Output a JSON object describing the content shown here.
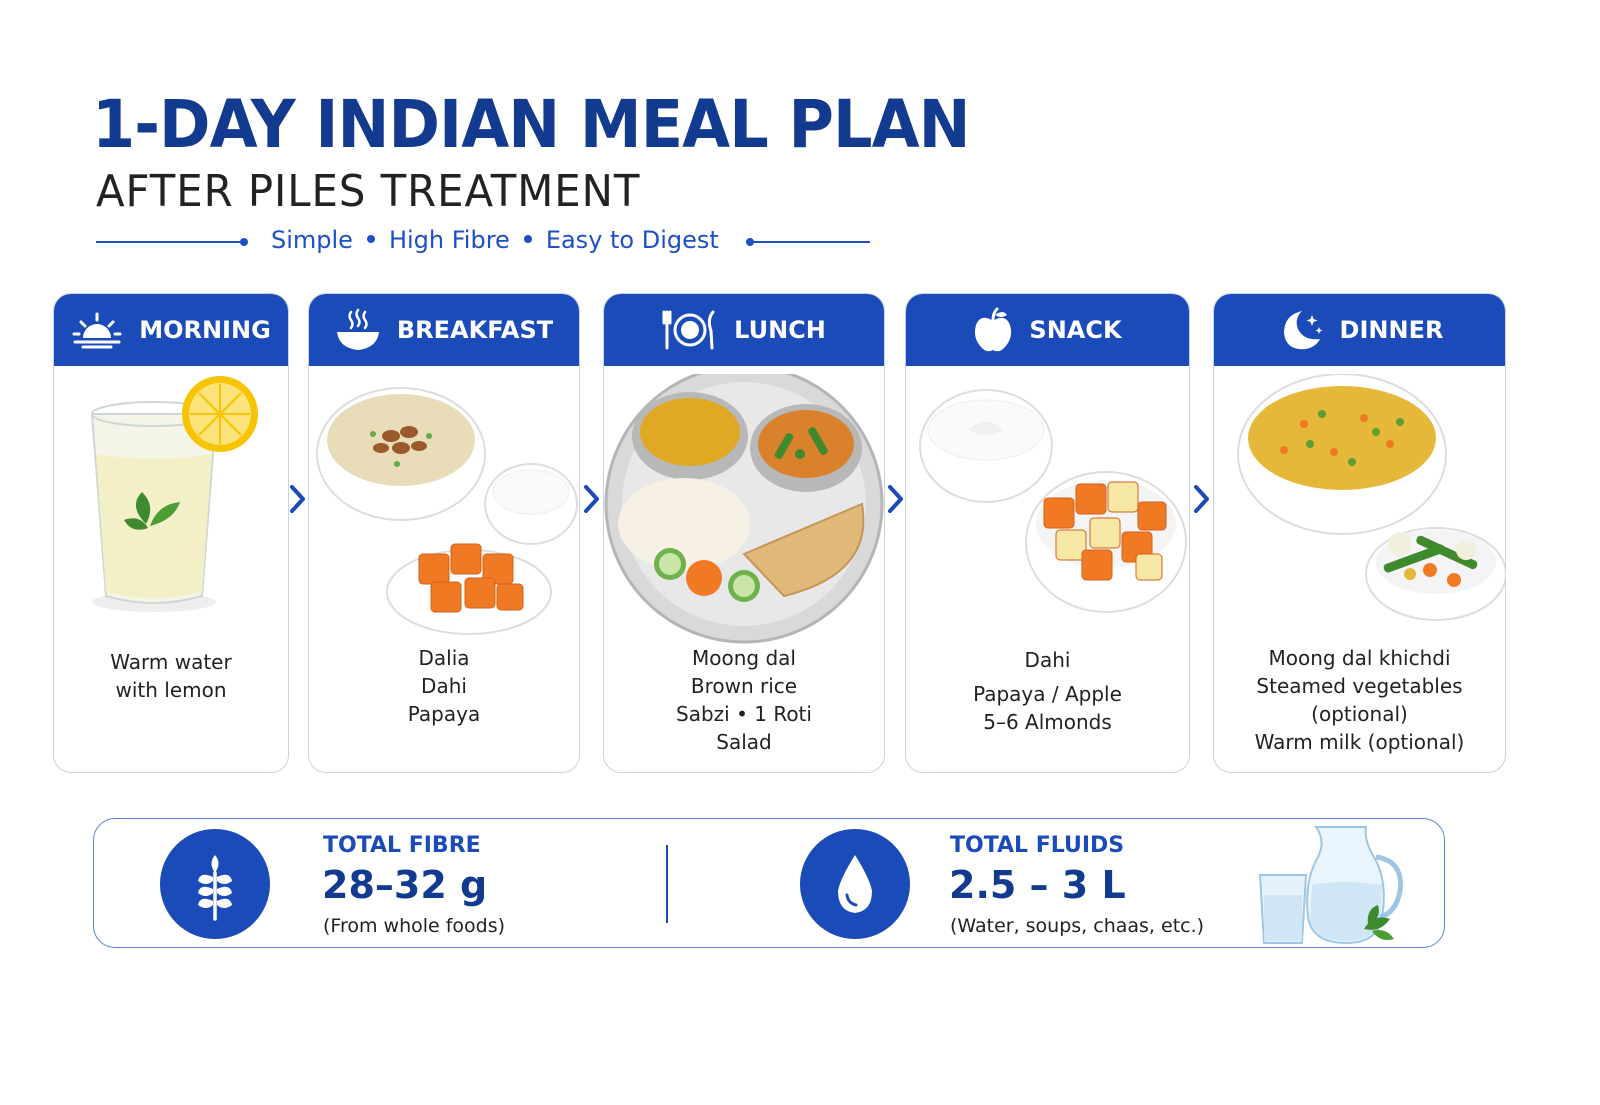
{
  "header": {
    "title": "1-DAY INDIAN MEAL PLAN",
    "subtitle": "AFTER PILES TREATMENT",
    "tagline": [
      "Simple",
      "High Fibre",
      "Easy to Digest"
    ]
  },
  "meals": [
    {
      "label": "MORNING",
      "icon": "sunrise-icon",
      "items": [
        "Warm water",
        "with lemon"
      ]
    },
    {
      "label": "BREAKFAST",
      "icon": "steaming-bowl-icon",
      "items": [
        "Dalia",
        "Dahi",
        "Papaya"
      ]
    },
    {
      "label": "LUNCH",
      "icon": "plate-cutlery-icon",
      "items": [
        "Moong dal",
        "Brown rice",
        "Sabzi • 1 Roti",
        "Salad"
      ]
    },
    {
      "label": "SNACK",
      "icon": "apple-icon",
      "items": [
        "Dahi",
        "Papaya / Apple",
        "5–6 Almonds"
      ]
    },
    {
      "label": "DINNER",
      "icon": "moon-stars-icon",
      "items": [
        "Moong dal khichdi",
        "Steamed vegetables",
        "(optional)",
        "Warm milk (optional)"
      ]
    }
  ],
  "summary": {
    "fibre": {
      "label": "TOTAL FIBRE",
      "value": "28–32 g",
      "note": "(From whole foods)",
      "icon": "wheat-icon"
    },
    "fluids": {
      "label": "TOTAL FLUIDS",
      "value": "2.5 – 3 L",
      "note": "(Water, soups, chaas, etc.)",
      "icon": "water-drop-icon"
    }
  },
  "colors": {
    "primary": "#1a4bb8",
    "title": "#123a8f",
    "accent": "#1e4fc4"
  }
}
